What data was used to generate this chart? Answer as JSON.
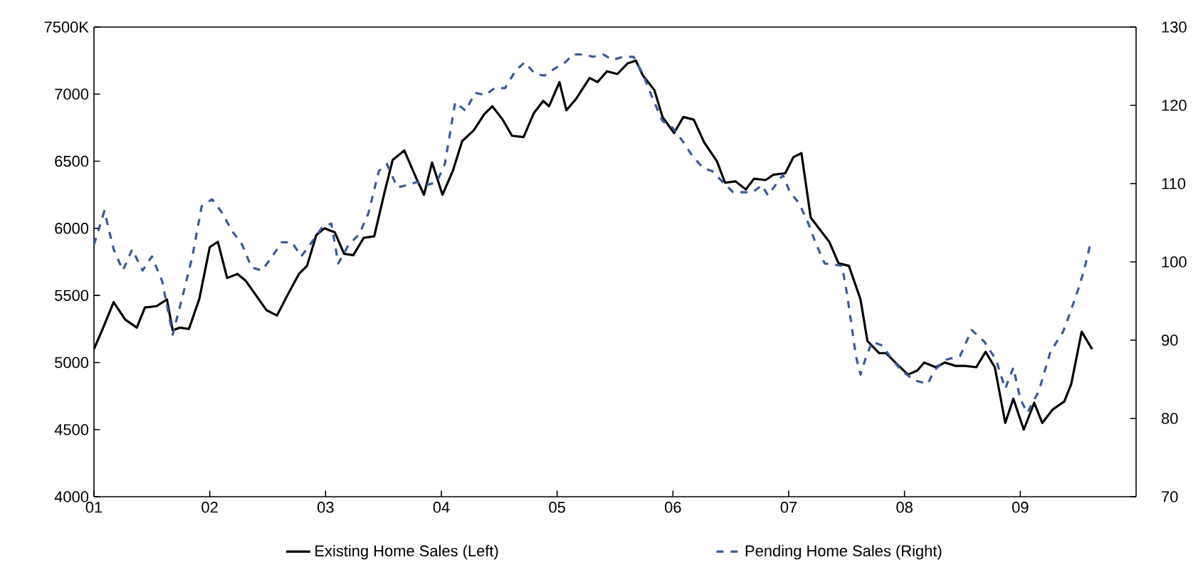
{
  "chart_data": {
    "type": "line",
    "legend": "bottom",
    "grid": false,
    "xlim": [
      2001,
      2010
    ],
    "xticks": [
      {
        "value": 2001,
        "label": "01"
      },
      {
        "value": 2002,
        "label": "02"
      },
      {
        "value": 2003,
        "label": "03"
      },
      {
        "value": 2004,
        "label": "04"
      },
      {
        "value": 2005,
        "label": "05"
      },
      {
        "value": 2006,
        "label": "06"
      },
      {
        "value": 2007,
        "label": "07"
      },
      {
        "value": 2008,
        "label": "08"
      },
      {
        "value": 2009,
        "label": "09"
      }
    ],
    "ylim": [
      4000,
      7500
    ],
    "yticks": [
      4000,
      4500,
      5000,
      5500,
      6000,
      6500,
      7000,
      {
        "value": 7500,
        "label": "7500K"
      }
    ],
    "y2lim": [
      70,
      130
    ],
    "y2ticks": [
      70,
      80,
      90,
      100,
      110,
      120,
      130
    ],
    "series": [
      {
        "name": "Existing Home Sales (Left)",
        "color": "#000000",
        "line_style": "solid",
        "x": [
          2001.0,
          2001.07,
          2001.17,
          2001.27,
          2001.37,
          2001.44,
          2001.54,
          2001.63,
          2001.68,
          2001.74,
          2001.82,
          2001.91,
          2002.0,
          2002.07,
          2002.15,
          2002.24,
          2002.31,
          2002.4,
          2002.49,
          2002.58,
          2002.67,
          2002.77,
          2002.84,
          2002.92,
          2002.99,
          2003.08,
          2003.16,
          2003.24,
          2003.33,
          2003.42,
          2003.51,
          2003.58,
          2003.68,
          2003.78,
          2003.85,
          2003.92,
          2004.01,
          2004.1,
          2004.18,
          2004.28,
          2004.37,
          2004.44,
          2004.53,
          2004.61,
          2004.71,
          2004.8,
          2004.88,
          2004.93,
          2005.02,
          2005.08,
          2005.16,
          2005.28,
          2005.35,
          2005.43,
          2005.52,
          2005.61,
          2005.68,
          2005.74,
          2005.84,
          2005.91,
          2006.01,
          2006.09,
          2006.18,
          2006.27,
          2006.38,
          2006.45,
          2006.54,
          2006.63,
          2006.7,
          2006.8,
          2006.87,
          2006.97,
          2007.04,
          2007.11,
          2007.19,
          2007.35,
          2007.43,
          2007.52,
          2007.62,
          2007.68,
          2007.78,
          2007.84,
          2007.95,
          2008.03,
          2008.11,
          2008.17,
          2008.27,
          2008.35,
          2008.44,
          2008.52,
          2008.62,
          2008.7,
          2008.78,
          2008.87,
          2008.94,
          2009.03,
          2009.12,
          2009.19,
          2009.28,
          2009.38,
          2009.44,
          2009.53,
          2009.62
        ],
        "values": [
          5100,
          5240,
          5450,
          5320,
          5260,
          5410,
          5420,
          5470,
          5240,
          5260,
          5250,
          5475,
          5860,
          5900,
          5630,
          5660,
          5610,
          5500,
          5390,
          5350,
          5500,
          5660,
          5720,
          5950,
          6000,
          5970,
          5810,
          5800,
          5930,
          5940,
          6270,
          6510,
          6580,
          6380,
          6250,
          6490,
          6250,
          6430,
          6650,
          6730,
          6850,
          6910,
          6810,
          6690,
          6680,
          6860,
          6950,
          6910,
          7090,
          6880,
          6960,
          7120,
          7090,
          7170,
          7150,
          7230,
          7250,
          7140,
          7030,
          6830,
          6710,
          6830,
          6810,
          6640,
          6500,
          6340,
          6350,
          6290,
          6370,
          6360,
          6400,
          6410,
          6530,
          6560,
          6080,
          5900,
          5740,
          5720,
          5470,
          5160,
          5070,
          5070,
          4975,
          4910,
          4940,
          5000,
          4965,
          5000,
          4975,
          4975,
          4965,
          5080,
          4965,
          4550,
          4730,
          4500,
          4700,
          4550,
          4650,
          4710,
          4840,
          5230,
          5100
        ]
      },
      {
        "name": "Pending Home Sales (Right)",
        "color": "#3a5a9a",
        "line_style": "dashed",
        "axis": "y2",
        "x": [
          2001.0,
          2001.09,
          2001.17,
          2001.25,
          2001.33,
          2001.42,
          2001.5,
          2001.59,
          2001.68,
          2001.76,
          2001.85,
          2001.93,
          2002.02,
          2002.11,
          2002.19,
          2002.28,
          2002.36,
          2002.45,
          2002.54,
          2002.62,
          2002.71,
          2002.79,
          2002.88,
          2002.97,
          2003.05,
          2003.11,
          2003.2,
          2003.29,
          2003.37,
          2003.46,
          2003.53,
          2003.62,
          2003.7,
          2003.79,
          2003.87,
          2003.96,
          2004.03,
          2004.12,
          2004.21,
          2004.29,
          2004.38,
          2004.46,
          2004.55,
          2004.64,
          2004.72,
          2004.81,
          2004.89,
          2004.98,
          2005.07,
          2005.14,
          2005.23,
          2005.31,
          2005.4,
          2005.48,
          2005.57,
          2005.66,
          2005.74,
          2005.83,
          2005.91,
          2006.0,
          2006.09,
          2006.17,
          2006.26,
          2006.34,
          2006.43,
          2006.52,
          2006.6,
          2006.69,
          2006.77,
          2006.82,
          2006.95,
          2007.01,
          2007.09,
          2007.17,
          2007.23,
          2007.31,
          2007.46,
          2007.5,
          2007.54,
          2007.58,
          2007.62,
          2007.66,
          2007.72,
          2007.81,
          2007.89,
          2007.97,
          2008.08,
          2008.2,
          2008.26,
          2008.36,
          2008.48,
          2008.58,
          2008.69,
          2008.79,
          2008.87,
          2008.94,
          2009.0,
          2009.06,
          2009.16,
          2009.26,
          2009.37,
          2009.43,
          2009.5,
          2009.55,
          2009.6
        ],
        "values": [
          102.2,
          106.5,
          101.6,
          98.9,
          101.6,
          98.9,
          100.7,
          97.5,
          90.7,
          95.3,
          100.7,
          107.1,
          108.0,
          106.2,
          104.0,
          102.2,
          99.3,
          98.9,
          100.7,
          102.5,
          102.5,
          100.7,
          102.5,
          104.4,
          104.9,
          99.8,
          102.2,
          103.5,
          106.2,
          111.6,
          112.5,
          109.5,
          109.8,
          110.2,
          109.8,
          110.2,
          112.5,
          120.4,
          119.3,
          121.6,
          121.3,
          122.2,
          122.2,
          124.4,
          125.5,
          124.0,
          123.8,
          124.7,
          125.5,
          126.5,
          126.5,
          126.2,
          126.5,
          125.8,
          126.2,
          126.2,
          124.0,
          120.7,
          118.0,
          117.1,
          115.3,
          113.5,
          112.0,
          111.6,
          110.2,
          108.9,
          108.9,
          108.9,
          109.8,
          108.5,
          111.1,
          108.9,
          107.5,
          104.9,
          102.5,
          99.8,
          99.5,
          96.2,
          92.2,
          88.0,
          85.6,
          87.5,
          89.8,
          89.3,
          87.6,
          86.2,
          84.9,
          84.4,
          86.2,
          87.5,
          88.0,
          91.3,
          89.8,
          87.5,
          83.8,
          86.5,
          82.5,
          80.7,
          83.5,
          88.5,
          91.1,
          93.5,
          96.5,
          98.9,
          102.0
        ]
      }
    ]
  }
}
